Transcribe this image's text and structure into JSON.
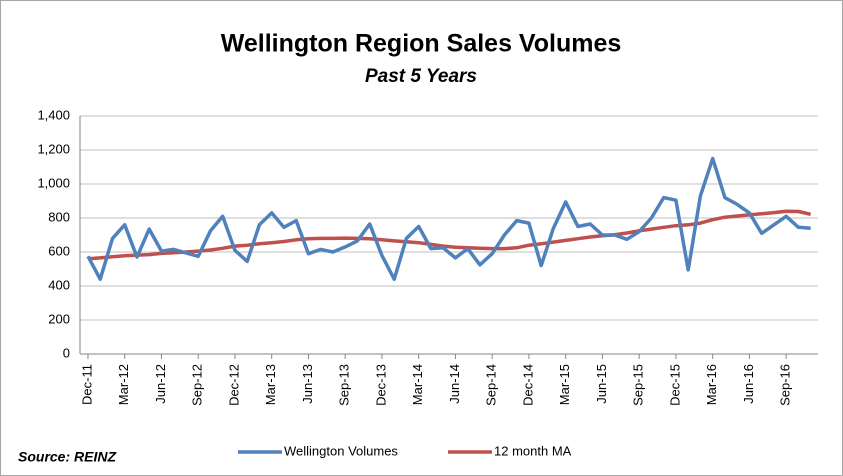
{
  "chart_data": {
    "type": "line",
    "title": "Wellington Region Sales Volumes",
    "subtitle": "Past 5 Years",
    "source": "Source: REINZ",
    "categories": [
      "Dec-11",
      null,
      null,
      "Mar-12",
      null,
      null,
      "Jun-12",
      null,
      null,
      "Sep-12",
      null,
      null,
      "Dec-12",
      null,
      null,
      "Mar-13",
      null,
      null,
      "Jun-13",
      null,
      null,
      "Sep-13",
      null,
      null,
      "Dec-13",
      null,
      null,
      "Mar-14",
      null,
      null,
      "Jun-14",
      null,
      null,
      "Sep-14",
      null,
      null,
      "Dec-14",
      null,
      null,
      "Mar-15",
      null,
      null,
      "Jun-15",
      null,
      null,
      "Sep-15",
      null,
      null,
      "Dec-15",
      null,
      null,
      "Mar-16",
      null,
      null,
      "Jun-16",
      null,
      null,
      "Sep-16",
      null,
      null
    ],
    "series": [
      {
        "name": "Wellington Volumes",
        "color": "#4f81bd",
        "values": [
          575,
          440,
          680,
          760,
          570,
          735,
          605,
          615,
          595,
          575,
          725,
          810,
          610,
          545,
          760,
          830,
          745,
          785,
          590,
          615,
          600,
          630,
          665,
          765,
          580,
          440,
          680,
          750,
          620,
          625,
          565,
          620,
          525,
          590,
          700,
          785,
          770,
          520,
          740,
          895,
          750,
          765,
          700,
          700,
          675,
          720,
          800,
          920,
          905,
          495,
          930,
          1150,
          920,
          880,
          830,
          710,
          760,
          810,
          745,
          740
        ]
      },
      {
        "name": "12 month MA",
        "color": "#c0504d",
        "values": [
          560,
          565,
          572,
          578,
          582,
          585,
          592,
          596,
          600,
          605,
          612,
          622,
          635,
          640,
          648,
          655,
          662,
          672,
          678,
          680,
          680,
          682,
          680,
          678,
          672,
          665,
          660,
          655,
          645,
          635,
          628,
          625,
          622,
          620,
          620,
          625,
          640,
          648,
          658,
          668,
          678,
          688,
          695,
          702,
          712,
          725,
          735,
          745,
          755,
          760,
          770,
          790,
          805,
          812,
          818,
          825,
          832,
          840,
          838,
          822
        ]
      }
    ],
    "ylim": [
      0,
      1400
    ],
    "yticks": [
      0,
      200,
      400,
      600,
      800,
      {
        "value": 1000,
        "label": "1,000"
      },
      {
        "value": 1200,
        "label": "1,200"
      },
      {
        "value": 1400,
        "label": "1,400"
      }
    ],
    "grid": true,
    "legend": "bottom"
  }
}
